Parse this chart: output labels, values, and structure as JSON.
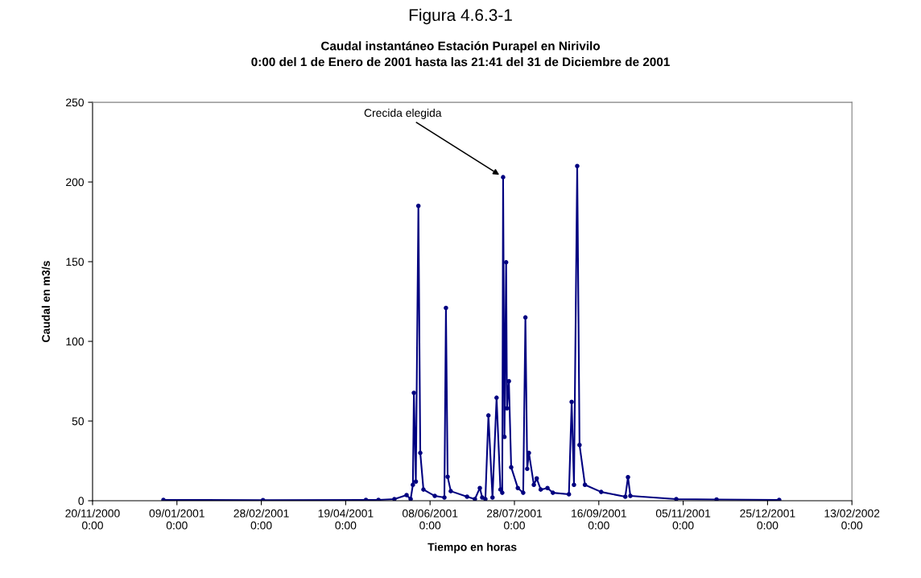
{
  "chart_data": {
    "type": "line",
    "title": "Caudal instantáneo Estación Purapel en Nirivilo\n0:00 del 1 de Enero de 2001 hasta las 21:41 del 31 de Diciembre de 2001",
    "xlabel": "Tiempo en horas",
    "ylabel": "Caudal en m3/s",
    "annotations": [
      "Figura 4.6.3-1",
      {
        "text": "Crecida elegida",
        "x": "2001-07-21T07:00",
        "y": 203
      }
    ],
    "xlim": [
      "2000-11-20",
      "2002-02-13"
    ],
    "xticks": [
      {
        "value": "2000-11-20",
        "label": "20/11/2000\n0:00"
      },
      {
        "value": "2001-01-09",
        "label": "09/01/2001\n0:00"
      },
      {
        "value": "2001-02-28",
        "label": "28/02/2001\n0:00"
      },
      {
        "value": "2001-04-19",
        "label": "19/04/2001\n0:00"
      },
      {
        "value": "2001-06-08",
        "label": "08/06/2001\n0:00"
      },
      {
        "value": "2001-07-28",
        "label": "28/07/2001\n0:00"
      },
      {
        "value": "2001-09-16",
        "label": "16/09/2001\n0:00"
      },
      {
        "value": "2001-11-05",
        "label": "05/11/2001\n0:00"
      },
      {
        "value": "2001-12-25",
        "label": "25/12/2001\n0:00"
      },
      {
        "value": "2002-02-13",
        "label": "13/02/2002\n0:00"
      }
    ],
    "ylim": [
      0,
      250
    ],
    "yticks": [
      0,
      50,
      100,
      150,
      200,
      250
    ],
    "grid": false,
    "legend": false,
    "marker": "circle",
    "line_style": "solid",
    "series": [
      {
        "color": "#000080",
        "x": [
          "2001-01-01T00:00",
          "2001-03-01T00:00",
          "2001-05-01T00:00",
          "2001-05-08T10:00",
          "2001-05-17T21:00",
          "2001-05-25T02:00",
          "2001-05-27T12:00",
          "2001-05-28T20:00",
          "2001-05-29T10:00",
          "2001-05-30T14:00",
          "2001-06-01T02:00",
          "2001-06-02T05:00",
          "2001-06-04T02:00",
          "2001-06-10T19:00",
          "2001-06-16T12:00",
          "2001-06-17T10:00",
          "2001-06-18T10:00",
          "2001-06-20T07:00",
          "2001-06-29T22:00",
          "2001-07-04T14:00",
          "2001-07-07T12:00",
          "2001-07-08T22:00",
          "2001-07-10T19:00",
          "2001-07-12T14:00",
          "2001-07-15T00:00",
          "2001-07-17T10:00",
          "2001-07-19T17:00",
          "2001-07-20T19:00",
          "2001-07-21T07:00",
          "2001-07-22T02:00",
          "2001-07-23T02:00",
          "2001-07-23T14:00",
          "2001-07-24T17:00",
          "2001-07-26T02:00",
          "2001-07-30T00:00",
          "2001-08-02T05:00",
          "2001-08-03T12:00",
          "2001-08-04T14:00",
          "2001-08-05T14:00",
          "2001-08-08T12:00",
          "2001-08-10T05:00",
          "2001-08-12T14:00",
          "2001-08-16T14:00",
          "2001-08-19T19:00",
          "2001-08-29T07:00",
          "2001-08-30T22:00",
          "2001-09-01T07:00",
          "2001-09-03T05:00",
          "2001-09-04T14:00",
          "2001-09-07T19:00",
          "2001-09-17T10:00",
          "2001-10-01T17:00",
          "2001-10-03T07:00",
          "2001-10-04T17:00",
          "2001-10-31T22:00",
          "2001-11-24T19:00",
          "2001-12-31T21:41"
        ],
        "values": [
          0.5,
          0.4,
          0.5,
          0.5,
          1,
          3.5,
          1,
          10,
          67.7,
          12,
          185,
          30,
          7,
          3,
          2,
          121,
          15,
          6,
          2.5,
          1,
          8,
          2,
          1,
          53.5,
          2,
          64.6,
          7,
          5,
          203,
          40,
          149.6,
          58,
          75,
          21,
          8,
          5,
          115,
          20,
          30,
          10,
          14,
          7,
          8,
          5,
          4,
          62,
          10,
          210,
          35,
          10,
          5.5,
          2.5,
          14.8,
          3,
          1,
          0.8,
          0.5
        ]
      }
    ]
  }
}
